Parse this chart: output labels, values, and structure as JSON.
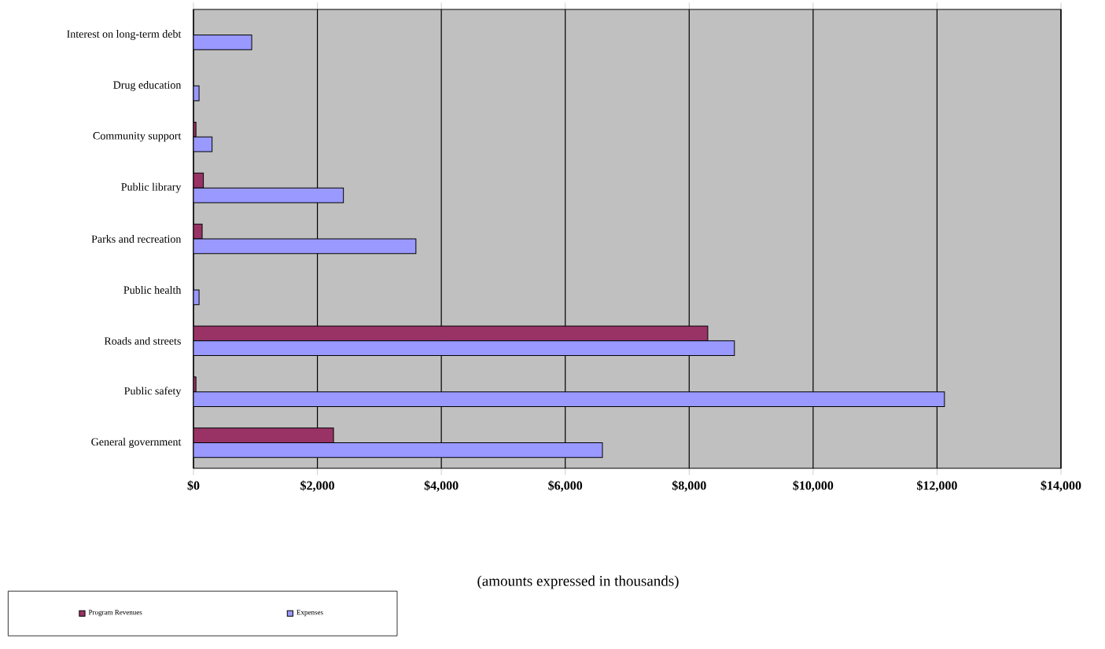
{
  "chart_data": {
    "type": "bar",
    "orientation": "horizontal",
    "annotations": [
      "(amounts expressed in thousands)"
    ],
    "categories": [
      "Interest on long-term debt",
      "Drug education",
      "Community support",
      "Public library",
      "Parks and recreation",
      "Public health",
      "Roads and streets",
      "Public safety",
      "General government"
    ],
    "series": [
      {
        "name": "Program Revenues",
        "color": "#993366",
        "values": [
          null,
          null,
          40,
          160,
          140,
          null,
          8300,
          40,
          2260
        ]
      },
      {
        "name": "Expenses",
        "color": "#9999ff",
        "values": [
          940,
          90,
          300,
          2420,
          3590,
          90,
          8730,
          12120,
          6600
        ]
      }
    ],
    "xlim": [
      0,
      14000
    ],
    "xticks": [
      {
        "value": 0,
        "label": "$0"
      },
      {
        "value": 2000,
        "label": "$2,000"
      },
      {
        "value": 4000,
        "label": "$4,000"
      },
      {
        "value": 6000,
        "label": "$6,000"
      },
      {
        "value": 8000,
        "label": "$8,000"
      },
      {
        "value": 10000,
        "label": "$10,000"
      },
      {
        "value": 12000,
        "label": "$12,000"
      },
      {
        "value": 14000,
        "label": "$14,000"
      }
    ],
    "grid": "x",
    "legend": "bottom left"
  }
}
